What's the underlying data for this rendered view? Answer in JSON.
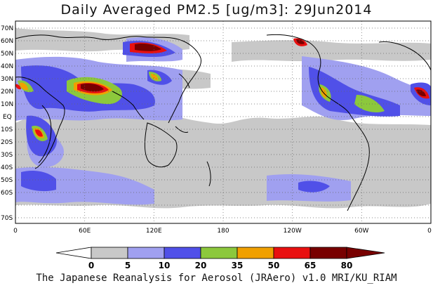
{
  "title": "Daily Averaged PM2.5 [ug/m3]: 29Jun2014",
  "footer": "The Japanese Reanalysis for Aerosol (JRAero) v1.0 MRI/KU_RIAM",
  "lat_labels": [
    "70N",
    "60N",
    "50N",
    "40N",
    "30N",
    "20N",
    "10N",
    "EQ",
    "10S",
    "20S",
    "30S",
    "40S",
    "50S",
    "60S",
    "70S"
  ],
  "lon_labels": [
    "0",
    "60E",
    "120E",
    "180",
    "120W",
    "60W",
    "0"
  ],
  "colorbar": {
    "ticks": [
      "0",
      "5",
      "10",
      "20",
      "35",
      "50",
      "65",
      "80"
    ],
    "colors": [
      "#ffffff",
      "#c8c8c8",
      "#a0a0f0",
      "#5050e8",
      "#8cc83c",
      "#f0a000",
      "#e81010",
      "#780000"
    ]
  }
}
